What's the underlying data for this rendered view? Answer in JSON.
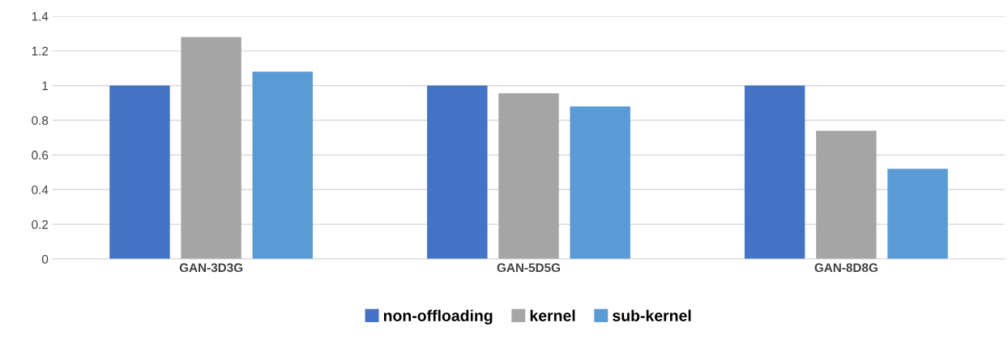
{
  "chart_data": {
    "type": "bar",
    "categories": [
      "GAN-3D3G",
      "GAN-5D5G",
      "GAN-8D8G"
    ],
    "series": [
      {
        "name": "non-offloading",
        "color": "#4472c4",
        "values": [
          1,
          1,
          1
        ]
      },
      {
        "name": "kernel",
        "color": "#a5a5a5",
        "values": [
          1.28,
          0.955,
          0.74
        ]
      },
      {
        "name": "sub-kernel",
        "color": "#5b9bd5",
        "values": [
          1.08,
          0.88,
          0.52
        ]
      }
    ],
    "ylim": [
      0,
      1.4
    ],
    "yticks": [
      0,
      0.2,
      0.4,
      0.6,
      0.8,
      1,
      1.2,
      1.4
    ],
    "grid": "y",
    "legend": "bottom"
  }
}
